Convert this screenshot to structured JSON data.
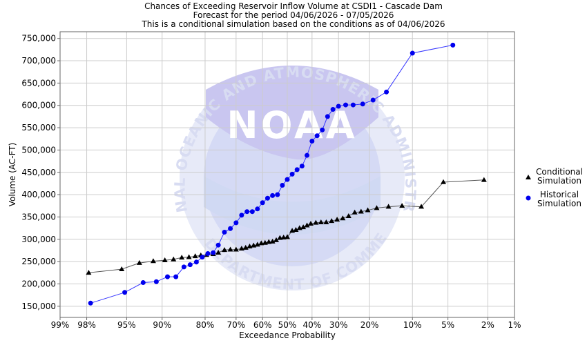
{
  "chart_data": {
    "type": "line",
    "title": [
      "Chances of Exceeding Reservoir Inflow Volume at CSDI1 - Cascade Dam",
      "Forecast for the period 04/06/2026 - 07/05/2026",
      "This is a conditional simulation based on the conditions as of 04/06/2026"
    ],
    "xlabel": "Exceedance Probability",
    "ylabel": "Volume (AC-FT)",
    "x_scale": "normal-probability",
    "xlim_percent": [
      99,
      1
    ],
    "ylim": [
      125000,
      765000
    ],
    "grid": true,
    "legend_position": "right",
    "x_ticks": [
      {
        "p": 99,
        "label": "99%"
      },
      {
        "p": 98,
        "label": "98%"
      },
      {
        "p": 95,
        "label": "95%"
      },
      {
        "p": 90,
        "label": "90%"
      },
      {
        "p": 80,
        "label": "80%"
      },
      {
        "p": 70,
        "label": "70%"
      },
      {
        "p": 60,
        "label": "60%"
      },
      {
        "p": 50,
        "label": "50%"
      },
      {
        "p": 40,
        "label": "40%"
      },
      {
        "p": 30,
        "label": "30%"
      },
      {
        "p": 20,
        "label": "20%"
      },
      {
        "p": 10,
        "label": "10%"
      },
      {
        "p": 5,
        "label": "5%"
      },
      {
        "p": 2,
        "label": "2%"
      },
      {
        "p": 1,
        "label": "1%"
      }
    ],
    "y_ticks": [
      {
        "v": 150000,
        "label": "150,000"
      },
      {
        "v": 200000,
        "label": "200,000"
      },
      {
        "v": 250000,
        "label": "250,000"
      },
      {
        "v": 300000,
        "label": "300,000"
      },
      {
        "v": 350000,
        "label": "350,000"
      },
      {
        "v": 400000,
        "label": "400,000"
      },
      {
        "v": 450000,
        "label": "450,000"
      },
      {
        "v": 500000,
        "label": "500,000"
      },
      {
        "v": 550000,
        "label": "550,000"
      },
      {
        "v": 600000,
        "label": "600,000"
      },
      {
        "v": 650000,
        "label": "650,000"
      },
      {
        "v": 700000,
        "label": "700,000"
      },
      {
        "v": 750000,
        "label": "750,000"
      }
    ],
    "series": [
      {
        "name": "Conditional Simulation",
        "legend": [
          "Conditional",
          "Simulation"
        ],
        "color": "#000000",
        "line_color": "#555555",
        "marker": "triangle",
        "points": [
          [
            97.9,
            225000
          ],
          [
            95.5,
            233000
          ],
          [
            93.5,
            247000
          ],
          [
            91.5,
            251000
          ],
          [
            89.5,
            253000
          ],
          [
            87.8,
            255000
          ],
          [
            86.0,
            259000
          ],
          [
            84.3,
            260000
          ],
          [
            82.7,
            262000
          ],
          [
            81.2,
            264000
          ],
          [
            79.6,
            265000
          ],
          [
            77.6,
            267000
          ],
          [
            76.0,
            270000
          ],
          [
            74.0,
            276000
          ],
          [
            72.0,
            277000
          ],
          [
            70.0,
            277000
          ],
          [
            68.0,
            279000
          ],
          [
            66.5,
            281000
          ],
          [
            65.0,
            284000
          ],
          [
            63.5,
            286000
          ],
          [
            62.0,
            288000
          ],
          [
            60.5,
            291000
          ],
          [
            59.0,
            292000
          ],
          [
            57.5,
            294000
          ],
          [
            56.0,
            295000
          ],
          [
            54.5,
            298000
          ],
          [
            53.0,
            303000
          ],
          [
            51.5,
            304000
          ],
          [
            50.0,
            305000
          ],
          [
            48.0,
            319000
          ],
          [
            46.5,
            321000
          ],
          [
            45.0,
            325000
          ],
          [
            43.5,
            327000
          ],
          [
            42.0,
            331000
          ],
          [
            40.5,
            335000
          ],
          [
            38.5,
            337000
          ],
          [
            36.5,
            338000
          ],
          [
            34.5,
            338000
          ],
          [
            32.5,
            341000
          ],
          [
            30.5,
            344000
          ],
          [
            28.5,
            347000
          ],
          [
            26.5,
            352000
          ],
          [
            24.5,
            360000
          ],
          [
            22.5,
            362000
          ],
          [
            20.5,
            365000
          ],
          [
            18.0,
            370000
          ],
          [
            15.0,
            373000
          ],
          [
            12.0,
            375000
          ],
          [
            8.5,
            373000
          ],
          [
            5.5,
            428000
          ],
          [
            2.2,
            433000
          ]
        ]
      },
      {
        "name": "Historical Simulation",
        "legend": [
          "Historical",
          "Simulation"
        ],
        "color": "#0000ee",
        "line_color": "#3333ff",
        "marker": "circle",
        "points": [
          [
            97.8,
            157000
          ],
          [
            95.2,
            181000
          ],
          [
            93.0,
            203000
          ],
          [
            91.0,
            205000
          ],
          [
            89.0,
            216000
          ],
          [
            87.3,
            216000
          ],
          [
            85.5,
            238000
          ],
          [
            84.0,
            243000
          ],
          [
            82.4,
            249000
          ],
          [
            80.8,
            260000
          ],
          [
            79.2,
            268000
          ],
          [
            77.6,
            270000
          ],
          [
            76.0,
            287000
          ],
          [
            74.0,
            316000
          ],
          [
            72.0,
            324000
          ],
          [
            70.0,
            337000
          ],
          [
            68.0,
            354000
          ],
          [
            66.0,
            362000
          ],
          [
            64.0,
            362000
          ],
          [
            62.0,
            368000
          ],
          [
            60.0,
            382000
          ],
          [
            58.0,
            392000
          ],
          [
            56.0,
            398000
          ],
          [
            54.0,
            400000
          ],
          [
            52.0,
            421000
          ],
          [
            50.0,
            434000
          ],
          [
            48.0,
            446000
          ],
          [
            46.0,
            456000
          ],
          [
            44.0,
            464000
          ],
          [
            42.0,
            488000
          ],
          [
            40.0,
            520000
          ],
          [
            38.0,
            532000
          ],
          [
            36.0,
            545000
          ],
          [
            34.0,
            575000
          ],
          [
            32.0,
            591000
          ],
          [
            30.0,
            598000
          ],
          [
            27.5,
            601000
          ],
          [
            25.0,
            601000
          ],
          [
            22.0,
            603000
          ],
          [
            19.0,
            612000
          ],
          [
            15.5,
            630000
          ],
          [
            10.0,
            717000
          ],
          [
            4.5,
            735000
          ]
        ]
      }
    ]
  },
  "watermark": {
    "name": "NOAA",
    "ring_text": "NATIONAL OCEANIC AND ATMOSPHERIC ADMINISTRATION",
    "bottom_text": "U.S. DEPARTMENT OF COMMERCE"
  }
}
